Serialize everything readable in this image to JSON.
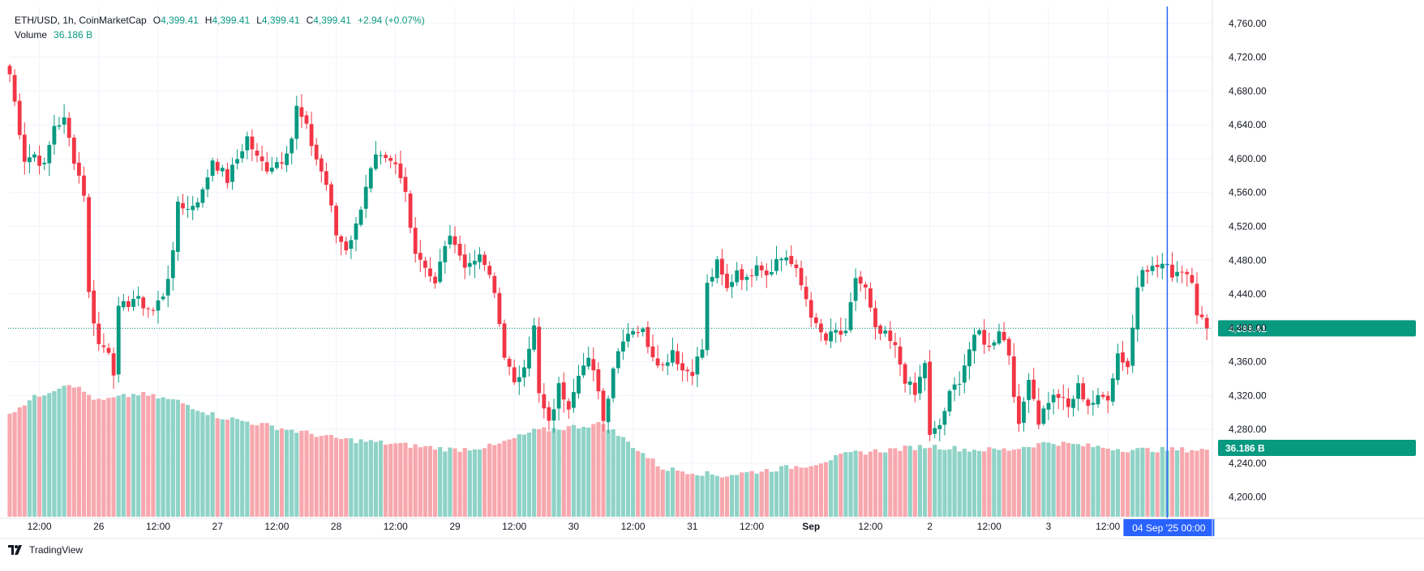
{
  "header": {
    "symbol": "ETH/USD, 1h, CoinMarketCap",
    "open_label": "O",
    "open": "4,399.41",
    "high_label": "H",
    "high": "4,399.41",
    "low_label": "L",
    "low": "4,399.41",
    "close_label": "C",
    "close": "4,399.41",
    "change": "+2.94 (+0.07%)",
    "volume_label": "Volume",
    "volume_value": "36.186 B"
  },
  "footer": {
    "brand": "TradingView"
  },
  "colors": {
    "up": "#089981",
    "down": "#F23645",
    "vol_up": "#8FD3C7",
    "vol_down": "#F7A8AE",
    "grid": "#F0F3FA",
    "crosshair": "#2962FF",
    "price_line": "#089981"
  },
  "chart_data": {
    "type": "candlestick",
    "title": "ETH/USD, 1h, CoinMarketCap",
    "xlabel": "",
    "ylabel": "",
    "ylim": [
      4170,
      4780
    ],
    "y_ticks": [
      "4,200.00",
      "4,240.00",
      "4,280.00",
      "4,320.00",
      "4,360.00",
      "4,400.00",
      "4,440.00",
      "4,480.00",
      "4,520.00",
      "4,560.00",
      "4,600.00",
      "4,640.00",
      "4,680.00",
      "4,720.00",
      "4,760.00"
    ],
    "y_tick_values": [
      4200,
      4240,
      4280,
      4320,
      4360,
      4400,
      4440,
      4480,
      4520,
      4560,
      4600,
      4640,
      4680,
      4720,
      4760
    ],
    "x_ticks": [
      {
        "label": "12:00",
        "bar": 6
      },
      {
        "label": "26",
        "bar": 18
      },
      {
        "label": "12:00",
        "bar": 30
      },
      {
        "label": "27",
        "bar": 42
      },
      {
        "label": "12:00",
        "bar": 54
      },
      {
        "label": "28",
        "bar": 66
      },
      {
        "label": "12:00",
        "bar": 78
      },
      {
        "label": "29",
        "bar": 90
      },
      {
        "label": "12:00",
        "bar": 102
      },
      {
        "label": "30",
        "bar": 114
      },
      {
        "label": "12:00",
        "bar": 126
      },
      {
        "label": "31",
        "bar": 138
      },
      {
        "label": "12:00",
        "bar": 150
      },
      {
        "label": "Sep",
        "bar": 162
      },
      {
        "label": "12:00",
        "bar": 174
      },
      {
        "label": "2",
        "bar": 186
      },
      {
        "label": "12:00",
        "bar": 198
      },
      {
        "label": "3",
        "bar": 210
      },
      {
        "label": "12:00",
        "bar": 222
      }
    ],
    "crosshair_label": "04 Sep '25   00:00",
    "crosshair_bar": 234,
    "last_price_label": "4,399.41",
    "last_price": 4399.41,
    "volume_label": "36.186 B",
    "close_path": [
      {
        "bar": 0,
        "close": 4700
      },
      {
        "bar": 3,
        "close": 4600
      },
      {
        "bar": 5,
        "close": 4605
      },
      {
        "bar": 7,
        "close": 4590
      },
      {
        "bar": 9,
        "close": 4640
      },
      {
        "bar": 11,
        "close": 4645
      },
      {
        "bar": 13,
        "close": 4600
      },
      {
        "bar": 15,
        "close": 4560
      },
      {
        "bar": 16,
        "close": 4440
      },
      {
        "bar": 18,
        "close": 4380
      },
      {
        "bar": 20,
        "close": 4375
      },
      {
        "bar": 21,
        "close": 4350
      },
      {
        "bar": 22,
        "close": 4420
      },
      {
        "bar": 25,
        "close": 4435
      },
      {
        "bar": 29,
        "close": 4420
      },
      {
        "bar": 31,
        "close": 4440
      },
      {
        "bar": 33,
        "close": 4485
      },
      {
        "bar": 34,
        "close": 4550
      },
      {
        "bar": 36,
        "close": 4540
      },
      {
        "bar": 39,
        "close": 4560
      },
      {
        "bar": 41,
        "close": 4600
      },
      {
        "bar": 44,
        "close": 4575
      },
      {
        "bar": 46,
        "close": 4600
      },
      {
        "bar": 48,
        "close": 4625
      },
      {
        "bar": 50,
        "close": 4600
      },
      {
        "bar": 52,
        "close": 4590
      },
      {
        "bar": 55,
        "close": 4600
      },
      {
        "bar": 57,
        "close": 4625
      },
      {
        "bar": 58,
        "close": 4660
      },
      {
        "bar": 60,
        "close": 4635
      },
      {
        "bar": 62,
        "close": 4600
      },
      {
        "bar": 64,
        "close": 4570
      },
      {
        "bar": 66,
        "close": 4510
      },
      {
        "bar": 68,
        "close": 4495
      },
      {
        "bar": 70,
        "close": 4520
      },
      {
        "bar": 72,
        "close": 4570
      },
      {
        "bar": 74,
        "close": 4600
      },
      {
        "bar": 76,
        "close": 4595
      },
      {
        "bar": 78,
        "close": 4590
      },
      {
        "bar": 80,
        "close": 4560
      },
      {
        "bar": 82,
        "close": 4490
      },
      {
        "bar": 84,
        "close": 4475
      },
      {
        "bar": 86,
        "close": 4450
      },
      {
        "bar": 88,
        "close": 4500
      },
      {
        "bar": 90,
        "close": 4505
      },
      {
        "bar": 92,
        "close": 4470
      },
      {
        "bar": 94,
        "close": 4485
      },
      {
        "bar": 96,
        "close": 4475
      },
      {
        "bar": 98,
        "close": 4440
      },
      {
        "bar": 100,
        "close": 4370
      },
      {
        "bar": 102,
        "close": 4330
      },
      {
        "bar": 104,
        "close": 4360
      },
      {
        "bar": 106,
        "close": 4400
      },
      {
        "bar": 107,
        "close": 4320
      },
      {
        "bar": 109,
        "close": 4285
      },
      {
        "bar": 111,
        "close": 4330
      },
      {
        "bar": 113,
        "close": 4310
      },
      {
        "bar": 115,
        "close": 4350
      },
      {
        "bar": 117,
        "close": 4360
      },
      {
        "bar": 119,
        "close": 4330
      },
      {
        "bar": 120,
        "close": 4290
      },
      {
        "bar": 122,
        "close": 4355
      },
      {
        "bar": 124,
        "close": 4390
      },
      {
        "bar": 126,
        "close": 4400
      },
      {
        "bar": 128,
        "close": 4395
      },
      {
        "bar": 130,
        "close": 4370
      },
      {
        "bar": 132,
        "close": 4355
      },
      {
        "bar": 134,
        "close": 4375
      },
      {
        "bar": 136,
        "close": 4350
      },
      {
        "bar": 138,
        "close": 4350
      },
      {
        "bar": 140,
        "close": 4375
      },
      {
        "bar": 141,
        "close": 4450
      },
      {
        "bar": 143,
        "close": 4475
      },
      {
        "bar": 145,
        "close": 4445
      },
      {
        "bar": 147,
        "close": 4470
      },
      {
        "bar": 149,
        "close": 4455
      },
      {
        "bar": 151,
        "close": 4480
      },
      {
        "bar": 153,
        "close": 4465
      },
      {
        "bar": 155,
        "close": 4480
      },
      {
        "bar": 157,
        "close": 4485
      },
      {
        "bar": 159,
        "close": 4465
      },
      {
        "bar": 161,
        "close": 4435
      },
      {
        "bar": 163,
        "close": 4400
      },
      {
        "bar": 165,
        "close": 4385
      },
      {
        "bar": 167,
        "close": 4395
      },
      {
        "bar": 169,
        "close": 4390
      },
      {
        "bar": 171,
        "close": 4460
      },
      {
        "bar": 173,
        "close": 4445
      },
      {
        "bar": 175,
        "close": 4395
      },
      {
        "bar": 177,
        "close": 4390
      },
      {
        "bar": 179,
        "close": 4375
      },
      {
        "bar": 181,
        "close": 4340
      },
      {
        "bar": 183,
        "close": 4320
      },
      {
        "bar": 185,
        "close": 4360
      },
      {
        "bar": 186,
        "close": 4270
      },
      {
        "bar": 188,
        "close": 4285
      },
      {
        "bar": 190,
        "close": 4320
      },
      {
        "bar": 192,
        "close": 4340
      },
      {
        "bar": 194,
        "close": 4375
      },
      {
        "bar": 196,
        "close": 4395
      },
      {
        "bar": 198,
        "close": 4375
      },
      {
        "bar": 200,
        "close": 4400
      },
      {
        "bar": 202,
        "close": 4370
      },
      {
        "bar": 204,
        "close": 4280
      },
      {
        "bar": 206,
        "close": 4345
      },
      {
        "bar": 208,
        "close": 4290
      },
      {
        "bar": 210,
        "close": 4315
      },
      {
        "bar": 212,
        "close": 4320
      },
      {
        "bar": 214,
        "close": 4305
      },
      {
        "bar": 216,
        "close": 4330
      },
      {
        "bar": 218,
        "close": 4310
      },
      {
        "bar": 220,
        "close": 4315
      },
      {
        "bar": 222,
        "close": 4320
      },
      {
        "bar": 224,
        "close": 4370
      },
      {
        "bar": 226,
        "close": 4355
      },
      {
        "bar": 227,
        "close": 4400
      },
      {
        "bar": 228,
        "close": 4450
      },
      {
        "bar": 229,
        "close": 4475
      },
      {
        "bar": 231,
        "close": 4470
      },
      {
        "bar": 233,
        "close": 4475
      },
      {
        "bar": 235,
        "close": 4465
      },
      {
        "bar": 237,
        "close": 4470
      },
      {
        "bar": 239,
        "close": 4460
      },
      {
        "bar": 240,
        "close": 4420
      },
      {
        "bar": 242,
        "close": 4399
      }
    ],
    "volume_path": [
      {
        "bar": 0,
        "vol": 28
      },
      {
        "bar": 5,
        "vol": 32
      },
      {
        "bar": 12,
        "vol": 36
      },
      {
        "bar": 18,
        "vol": 31
      },
      {
        "bar": 26,
        "vol": 33
      },
      {
        "bar": 34,
        "vol": 31
      },
      {
        "bar": 42,
        "vol": 27
      },
      {
        "bar": 50,
        "vol": 25
      },
      {
        "bar": 58,
        "vol": 23
      },
      {
        "bar": 66,
        "vol": 21
      },
      {
        "bar": 74,
        "vol": 20
      },
      {
        "bar": 82,
        "vol": 19
      },
      {
        "bar": 90,
        "vol": 18
      },
      {
        "bar": 98,
        "vol": 19
      },
      {
        "bar": 106,
        "vol": 23
      },
      {
        "bar": 113,
        "vol": 24
      },
      {
        "bar": 120,
        "vol": 25
      },
      {
        "bar": 126,
        "vol": 19
      },
      {
        "bar": 132,
        "vol": 13
      },
      {
        "bar": 138,
        "vol": 12
      },
      {
        "bar": 144,
        "vol": 11
      },
      {
        "bar": 150,
        "vol": 12
      },
      {
        "bar": 156,
        "vol": 13
      },
      {
        "bar": 162,
        "vol": 14
      },
      {
        "bar": 170,
        "vol": 17
      },
      {
        "bar": 178,
        "vol": 18
      },
      {
        "bar": 186,
        "vol": 19
      },
      {
        "bar": 194,
        "vol": 18
      },
      {
        "bar": 202,
        "vol": 18
      },
      {
        "bar": 210,
        "vol": 20
      },
      {
        "bar": 218,
        "vol": 19
      },
      {
        "bar": 226,
        "vol": 18
      },
      {
        "bar": 234,
        "vol": 18
      },
      {
        "bar": 242,
        "vol": 18
      }
    ],
    "volume_max": 40,
    "total_bars": 243
  }
}
